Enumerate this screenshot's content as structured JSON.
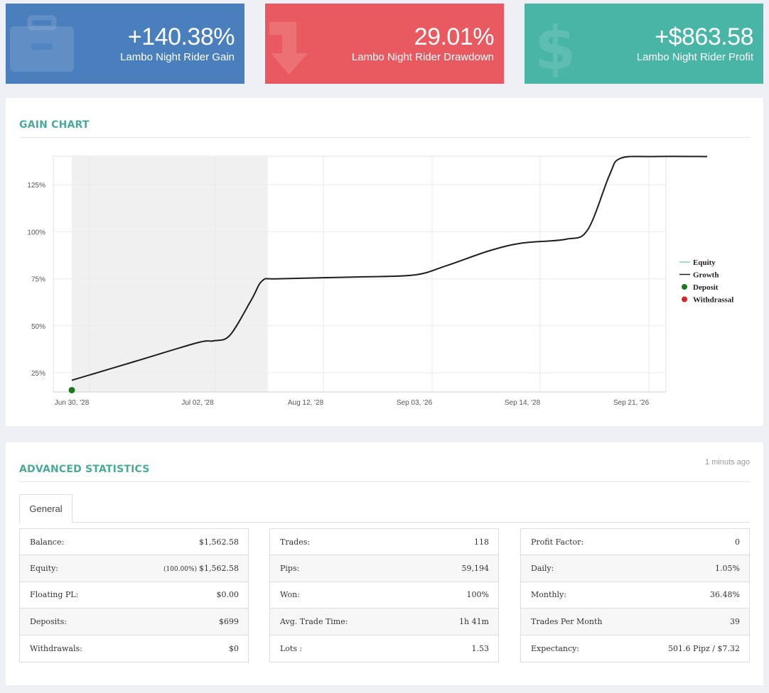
{
  "cards": {
    "gain": {
      "value": "+140.38%",
      "label": "Lambo Night Rider Gain",
      "icon": "briefcase-icon",
      "color": "#4a7fbe"
    },
    "drawdown": {
      "value": "29.01%",
      "label": "Lambo Night Rider Drawdown",
      "icon": "arrow-down-icon",
      "color": "#e85a5f"
    },
    "profit": {
      "value": "+$863.58",
      "label": "Lambo Night Rider Profit",
      "icon": "dollar-icon",
      "color": "#48b5a7"
    }
  },
  "gain_chart": {
    "title": "GAIN CHART",
    "y_ticks": [
      "25%",
      "50%",
      "75%",
      "100%",
      "125%"
    ],
    "x_ticks": [
      "Jun 30, '28",
      "Jul 02, '28",
      "Aug 12, '28",
      "Sep 03, '26",
      "Sep 14, '28",
      "Sep 21, '26"
    ],
    "legend": [
      {
        "label": "Equity",
        "color": "#8ec9c0",
        "kind": "line"
      },
      {
        "label": "Growth",
        "color": "#222222",
        "kind": "line"
      },
      {
        "label": "Deposit",
        "color": "#1a7a1a",
        "kind": "dot"
      },
      {
        "label": "Withdrassal",
        "color": "#d62728",
        "kind": "dot"
      }
    ]
  },
  "chart_data": {
    "type": "line",
    "title": "GAIN CHART",
    "ylabel": "",
    "ylim": [
      15,
      140
    ],
    "categories": [
      "Jun 30, '28",
      "Jul 02, '28",
      "Aug 12, '28",
      "Sep 03, '26",
      "Sep 14, '28",
      "Sep 21, '26"
    ],
    "series": [
      {
        "name": "Growth",
        "points": [
          [
            0.0,
            21
          ],
          [
            0.5,
            31
          ],
          [
            1.0,
            41
          ],
          [
            1.15,
            42
          ],
          [
            1.3,
            45
          ],
          [
            1.5,
            64
          ],
          [
            1.6,
            74
          ],
          [
            1.75,
            75
          ],
          [
            2.5,
            76
          ],
          [
            3.0,
            77
          ],
          [
            3.3,
            82
          ],
          [
            3.7,
            90
          ],
          [
            4.0,
            94
          ],
          [
            4.4,
            96
          ],
          [
            4.6,
            101
          ],
          [
            4.8,
            130
          ],
          [
            4.9,
            139
          ],
          [
            5.2,
            140
          ],
          [
            5.7,
            140
          ]
        ]
      }
    ],
    "deposits": [
      [
        0.0,
        15
      ]
    ],
    "shaded_range": [
      0.0,
      1.65
    ],
    "grid": true,
    "legend_position": "right"
  },
  "stats": {
    "title": "ADVANCED STATISTICS",
    "updated": "1 minuts ago",
    "tab": "General",
    "columns": [
      [
        {
          "label": "Balance:",
          "value": "$1,562.58"
        },
        {
          "label": "Equity:",
          "prefix": "(100.00%)",
          "value": "$1,562.58"
        },
        {
          "label": "Floating PL:",
          "value": "$0.00"
        },
        {
          "label": "Deposits:",
          "value": "$699"
        },
        {
          "label": "Withdrawals:",
          "value": "$0"
        }
      ],
      [
        {
          "label": "Trades:",
          "value": "118"
        },
        {
          "label": "Pips:",
          "value": "59,194"
        },
        {
          "label": "Won:",
          "value": "100%"
        },
        {
          "label": "Avg. Trade Time:",
          "value": "1h 41m"
        },
        {
          "label": "Lots :",
          "value": "1.53"
        }
      ],
      [
        {
          "label": "Profit Factor:",
          "value": "0"
        },
        {
          "label": "Daily:",
          "value": "1.05%"
        },
        {
          "label": "Monthly:",
          "value": "36.48%"
        },
        {
          "label": "Trades Per Month",
          "value": "39"
        },
        {
          "label": "Expectancy:",
          "value": "501.6 Pipz / $7.32"
        }
      ]
    ]
  }
}
